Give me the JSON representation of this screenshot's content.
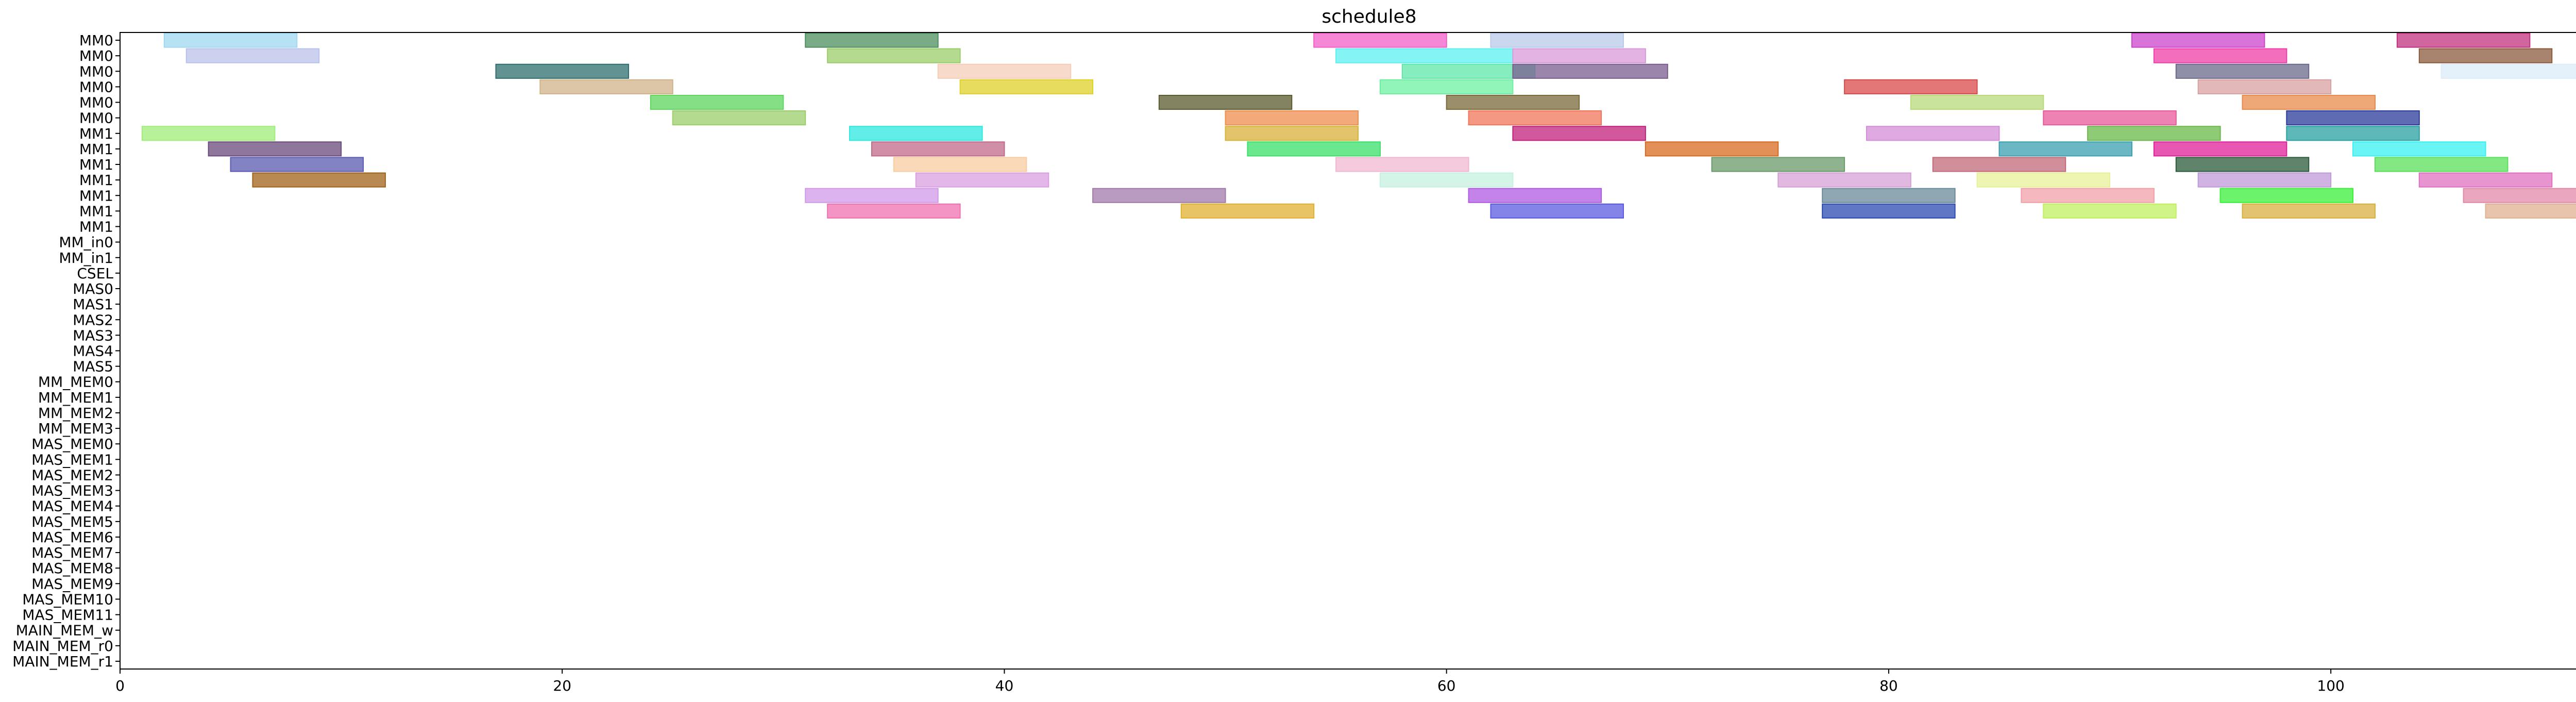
{
  "chart_data": {
    "type": "gantt",
    "title": "schedule8",
    "xlabel": "",
    "ylabel": "",
    "xlim": [
      0,
      113
    ],
    "xticks": [
      0,
      20,
      40,
      60,
      80,
      100
    ],
    "grid": false,
    "rows": [
      "MM0",
      "MM0",
      "MM0",
      "MM0",
      "MM0",
      "MM0",
      "MM1",
      "MM1",
      "MM1",
      "MM1",
      "MM1",
      "MM1",
      "MM1",
      "MM_in0",
      "MM_in1",
      "CSEL",
      "MAS0",
      "MAS1",
      "MAS2",
      "MAS3",
      "MAS4",
      "MAS5",
      "MM_MEM0",
      "MM_MEM1",
      "MM_MEM2",
      "MM_MEM3",
      "MAS_MEM0",
      "MAS_MEM1",
      "MAS_MEM2",
      "MAS_MEM3",
      "MAS_MEM4",
      "MAS_MEM5",
      "MAS_MEM6",
      "MAS_MEM7",
      "MAS_MEM8",
      "MAS_MEM9",
      "MAS_MEM10",
      "MAS_MEM11",
      "MAIN_MEM_w",
      "MAIN_MEM_r0",
      "MAIN_MEM_r1"
    ],
    "tasks": [
      {
        "row": 0,
        "start": 2,
        "end": 8,
        "color": "#9fd8ef"
      },
      {
        "row": 0,
        "start": 31,
        "end": 37,
        "color": "#4e8f5f"
      },
      {
        "row": 0,
        "start": 54,
        "end": 60,
        "color": "#f25fc8"
      },
      {
        "row": 0,
        "start": 62,
        "end": 68,
        "color": "#b9c9ea"
      },
      {
        "row": 0,
        "start": 91,
        "end": 97,
        "color": "#cc44cc"
      },
      {
        "row": 0,
        "start": 103,
        "end": 109,
        "color": "#c0327f"
      },
      {
        "row": 1,
        "start": 3,
        "end": 9,
        "color": "#b9c2ea"
      },
      {
        "row": 1,
        "start": 32,
        "end": 38,
        "color": "#9acd6a"
      },
      {
        "row": 1,
        "start": 55,
        "end": 63,
        "color": "#5cf0f0"
      },
      {
        "row": 1,
        "start": 63,
        "end": 69,
        "color": "#d99ad9"
      },
      {
        "row": 1,
        "start": 92,
        "end": 98,
        "color": "#ef3fa8"
      },
      {
        "row": 1,
        "start": 104,
        "end": 110,
        "color": "#8b5a3c"
      },
      {
        "row": 2,
        "start": 17,
        "end": 23,
        "color": "#2e6e6e"
      },
      {
        "row": 2,
        "start": 37,
        "end": 43,
        "color": "#f6cdb8"
      },
      {
        "row": 2,
        "start": 58,
        "end": 64,
        "color": "#5ee8a8"
      },
      {
        "row": 2,
        "start": 63,
        "end": 70,
        "color": "#7a5c8f"
      },
      {
        "row": 2,
        "start": 93,
        "end": 99,
        "color": "#6a6a8a"
      },
      {
        "row": 2,
        "start": 105,
        "end": 112,
        "color": "#dcecf8"
      },
      {
        "row": 3,
        "start": 19,
        "end": 25,
        "color": "#d1b38a"
      },
      {
        "row": 3,
        "start": 38,
        "end": 44,
        "color": "#e0d02a"
      },
      {
        "row": 3,
        "start": 57,
        "end": 63,
        "color": "#6cf0a0"
      },
      {
        "row": 3,
        "start": 78,
        "end": 84,
        "color": "#d94a4a"
      },
      {
        "row": 3,
        "start": 94,
        "end": 100,
        "color": "#d9a0a0"
      },
      {
        "row": 4,
        "start": 24,
        "end": 30,
        "color": "#5cd65c"
      },
      {
        "row": 4,
        "start": 47,
        "end": 53,
        "color": "#5a5a2e"
      },
      {
        "row": 4,
        "start": 60,
        "end": 66,
        "color": "#7a6a3a"
      },
      {
        "row": 4,
        "start": 81,
        "end": 87,
        "color": "#b8da7a"
      },
      {
        "row": 4,
        "start": 96,
        "end": 102,
        "color": "#e88a4a"
      },
      {
        "row": 5,
        "start": 25,
        "end": 31,
        "color": "#9acd6a"
      },
      {
        "row": 5,
        "start": 50,
        "end": 56,
        "color": "#ee8e4e"
      },
      {
        "row": 5,
        "start": 61,
        "end": 67,
        "color": "#f0745a"
      },
      {
        "row": 5,
        "start": 87,
        "end": 93,
        "color": "#e8589a"
      },
      {
        "row": 5,
        "start": 98,
        "end": 104,
        "color": "#2a3a9a"
      },
      {
        "row": 6,
        "start": 1,
        "end": 7,
        "color": "#9fee7a"
      },
      {
        "row": 6,
        "start": 33,
        "end": 39,
        "color": "#2ee8e0"
      },
      {
        "row": 6,
        "start": 50,
        "end": 56,
        "color": "#d8b23a"
      },
      {
        "row": 6,
        "start": 63,
        "end": 69,
        "color": "#c0207a"
      },
      {
        "row": 6,
        "start": 79,
        "end": 85,
        "color": "#d48ed8"
      },
      {
        "row": 6,
        "start": 89,
        "end": 95,
        "color": "#6ab84a"
      },
      {
        "row": 6,
        "start": 98,
        "end": 104,
        "color": "#2aa0a0"
      },
      {
        "row": 7,
        "start": 4,
        "end": 10,
        "color": "#6a4a7a"
      },
      {
        "row": 7,
        "start": 34,
        "end": 40,
        "color": "#c06a8a"
      },
      {
        "row": 7,
        "start": 51,
        "end": 57,
        "color": "#3ae06a"
      },
      {
        "row": 7,
        "start": 69,
        "end": 75,
        "color": "#d86a20"
      },
      {
        "row": 7,
        "start": 85,
        "end": 91,
        "color": "#3aa0b0"
      },
      {
        "row": 7,
        "start": 92,
        "end": 98,
        "color": "#e0209a"
      },
      {
        "row": 7,
        "start": 101,
        "end": 107,
        "color": "#3af0f0"
      },
      {
        "row": 8,
        "start": 5,
        "end": 11,
        "color": "#5a5ab0"
      },
      {
        "row": 8,
        "start": 35,
        "end": 41,
        "color": "#f8cca0"
      },
      {
        "row": 8,
        "start": 55,
        "end": 61,
        "color": "#f0b8d0"
      },
      {
        "row": 8,
        "start": 72,
        "end": 78,
        "color": "#6a9a6a"
      },
      {
        "row": 8,
        "start": 82,
        "end": 88,
        "color": "#c06a7a"
      },
      {
        "row": 8,
        "start": 93,
        "end": 99,
        "color": "#2a5a3a"
      },
      {
        "row": 8,
        "start": 102,
        "end": 108,
        "color": "#5ae05a"
      },
      {
        "row": 9,
        "start": 6,
        "end": 12,
        "color": "#a0621a"
      },
      {
        "row": 9,
        "start": 36,
        "end": 42,
        "color": "#d9a0e0"
      },
      {
        "row": 9,
        "start": 57,
        "end": 63,
        "color": "#c6f0e0"
      },
      {
        "row": 9,
        "start": 75,
        "end": 81,
        "color": "#d6a0d6"
      },
      {
        "row": 9,
        "start": 84,
        "end": 90,
        "color": "#e8f098"
      },
      {
        "row": 9,
        "start": 94,
        "end": 100,
        "color": "#c09ad8"
      },
      {
        "row": 9,
        "start": 104,
        "end": 110,
        "color": "#e070c0"
      },
      {
        "row": 10,
        "start": 31,
        "end": 37,
        "color": "#d09ae8"
      },
      {
        "row": 10,
        "start": 44,
        "end": 50,
        "color": "#a07aa8"
      },
      {
        "row": 10,
        "start": 61,
        "end": 67,
        "color": "#b05ae0"
      },
      {
        "row": 10,
        "start": 77,
        "end": 83,
        "color": "#6a8a9a"
      },
      {
        "row": 10,
        "start": 86,
        "end": 92,
        "color": "#f0a0a8"
      },
      {
        "row": 10,
        "start": 95,
        "end": 101,
        "color": "#3af03a"
      },
      {
        "row": 10,
        "start": 106,
        "end": 112,
        "color": "#e08aa8"
      },
      {
        "row": 11,
        "start": 32,
        "end": 38,
        "color": "#f070b0"
      },
      {
        "row": 11,
        "start": 48,
        "end": 54,
        "color": "#e0b030"
      },
      {
        "row": 11,
        "start": 62,
        "end": 68,
        "color": "#5a5ae0"
      },
      {
        "row": 11,
        "start": 77,
        "end": 83,
        "color": "#2a4ab0"
      },
      {
        "row": 11,
        "start": 87,
        "end": 93,
        "color": "#c0f060"
      },
      {
        "row": 11,
        "start": 96,
        "end": 102,
        "color": "#d8b040"
      },
      {
        "row": 11,
        "start": 107,
        "end": 113,
        "color": "#e0b090"
      }
    ],
    "legend": []
  }
}
